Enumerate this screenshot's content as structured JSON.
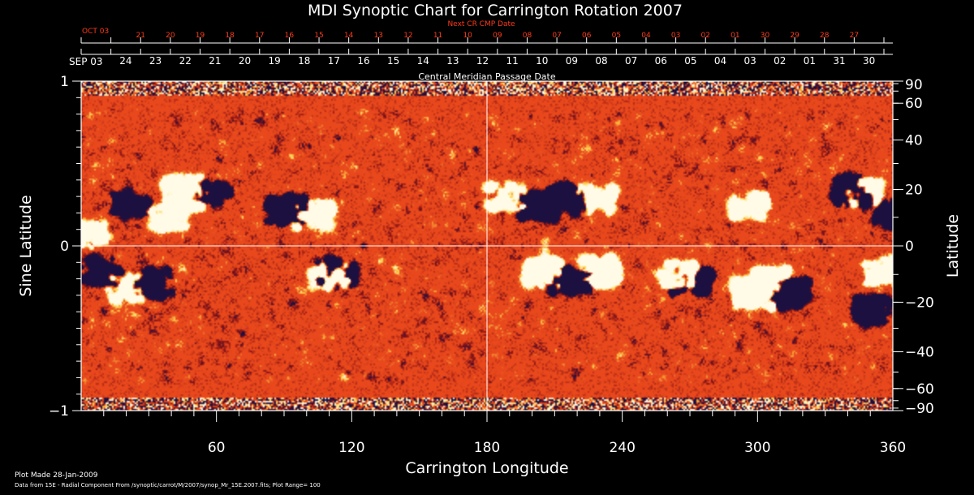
{
  "colors": {
    "background": "#000000",
    "axes": "#ffffff",
    "next_cr_text": "#ff3a1a",
    "map_base": "#e8481c",
    "map_light": "#ffd24a",
    "map_white": "#fffbe6",
    "map_dark": "#1c1040"
  },
  "chart_data": {
    "type": "heatmap",
    "title": "MDI Synoptic Chart for Carrington Rotation 2007",
    "xlabel": "Carrington Longitude",
    "ylabel_left": "Sine Latitude",
    "ylabel_right": "Latitude",
    "xlim": [
      0,
      360
    ],
    "ylim": [
      -1,
      1
    ],
    "x_ticks": [
      60,
      120,
      180,
      240,
      300,
      360
    ],
    "y_ticks_left": [
      1,
      0,
      -1
    ],
    "y_ticks_right": [
      90,
      60,
      40,
      20,
      0,
      -20,
      -40,
      -60,
      -90
    ],
    "top_axis_title": "Central Meridian Passage Date",
    "top_axis_start_label": "SEP 03",
    "top_axis_dates": [
      "24",
      "23",
      "22",
      "21",
      "20",
      "19",
      "18",
      "17",
      "16",
      "15",
      "14",
      "13",
      "12",
      "11",
      "10",
      "09",
      "08",
      "07",
      "06",
      "05",
      "04",
      "03",
      "02",
      "01",
      "31",
      "30"
    ],
    "next_cr_title": "Next CR CMP Date",
    "next_cr_start_label": "OCT 03",
    "next_cr_dates": [
      "21",
      "20",
      "19",
      "18",
      "17",
      "16",
      "15",
      "14",
      "13",
      "12",
      "11",
      "10",
      "09",
      "08",
      "07",
      "06",
      "05",
      "04",
      "03",
      "02",
      "01",
      "30",
      "29",
      "28",
      "27"
    ],
    "crosshair": {
      "longitude": 180,
      "sine_latitude": 0
    },
    "plot_range": 100,
    "active_regions": [
      {
        "lon": 3,
        "sinlat": 0.07,
        "polarity": "positive",
        "strength": 0.9
      },
      {
        "lon": 8,
        "sinlat": -0.15,
        "polarity": "negative",
        "strength": 0.8
      },
      {
        "lon": 22,
        "sinlat": 0.26,
        "polarity": "negative",
        "strength": 0.7
      },
      {
        "lon": 38,
        "sinlat": 0.18,
        "polarity": "positive",
        "strength": 0.6
      },
      {
        "lon": 45,
        "sinlat": 0.35,
        "polarity": "positive",
        "strength": 0.7
      },
      {
        "lon": 57,
        "sinlat": 0.32,
        "polarity": "negative",
        "strength": 0.8
      },
      {
        "lon": 50,
        "sinlat": 0.3,
        "polarity": "positive",
        "strength": 0.7
      },
      {
        "lon": 91,
        "sinlat": 0.22,
        "polarity": "negative",
        "strength": 1.0
      },
      {
        "lon": 103,
        "sinlat": 0.2,
        "polarity": "positive",
        "strength": 0.9
      },
      {
        "lon": 110,
        "sinlat": -0.17,
        "polarity": "positive",
        "strength": 0.8
      },
      {
        "lon": 113,
        "sinlat": -0.16,
        "polarity": "negative",
        "strength": 0.8
      },
      {
        "lon": 20,
        "sinlat": -0.25,
        "polarity": "positive",
        "strength": 0.6
      },
      {
        "lon": 31,
        "sinlat": -0.22,
        "polarity": "negative",
        "strength": 0.6
      },
      {
        "lon": 188,
        "sinlat": 0.3,
        "polarity": "positive",
        "strength": 0.6
      },
      {
        "lon": 202,
        "sinlat": 0.25,
        "polarity": "negative",
        "strength": 0.8
      },
      {
        "lon": 215,
        "sinlat": 0.29,
        "polarity": "negative",
        "strength": 0.9
      },
      {
        "lon": 228,
        "sinlat": 0.28,
        "polarity": "positive",
        "strength": 0.7
      },
      {
        "lon": 205,
        "sinlat": -0.16,
        "polarity": "positive",
        "strength": 1.0
      },
      {
        "lon": 217,
        "sinlat": -0.2,
        "polarity": "negative",
        "strength": 1.0
      },
      {
        "lon": 230,
        "sinlat": -0.15,
        "polarity": "positive",
        "strength": 0.9
      },
      {
        "lon": 265,
        "sinlat": -0.17,
        "polarity": "positive",
        "strength": 0.9
      },
      {
        "lon": 270,
        "sinlat": -0.2,
        "polarity": "negative",
        "strength": 0.8
      },
      {
        "lon": 298,
        "sinlat": -0.29,
        "polarity": "positive",
        "strength": 1.0
      },
      {
        "lon": 305,
        "sinlat": -0.22,
        "polarity": "positive",
        "strength": 1.0
      },
      {
        "lon": 314,
        "sinlat": -0.28,
        "polarity": "negative",
        "strength": 1.0
      },
      {
        "lon": 296,
        "sinlat": 0.25,
        "polarity": "positive",
        "strength": 0.6
      },
      {
        "lon": 341,
        "sinlat": 0.34,
        "polarity": "negative",
        "strength": 0.9
      },
      {
        "lon": 346,
        "sinlat": 0.33,
        "polarity": "positive",
        "strength": 0.8
      },
      {
        "lon": 350,
        "sinlat": -0.39,
        "polarity": "negative",
        "strength": 0.7
      },
      {
        "lon": 355,
        "sinlat": -0.15,
        "polarity": "positive",
        "strength": 0.8
      },
      {
        "lon": 360,
        "sinlat": 0.2,
        "polarity": "negative",
        "strength": 0.6
      }
    ]
  },
  "footer": {
    "plot_made": "Plot Made 28-Jan-2009",
    "data_source": "Data from 15E - Radial Component From /synoptic/carrot/M/2007/synop_Mr_15E.2007.fits; Plot Range= 100"
  }
}
